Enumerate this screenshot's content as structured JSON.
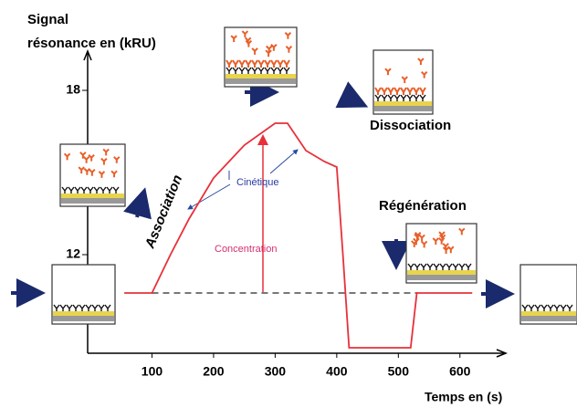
{
  "chart_data": {
    "type": "line",
    "y_label_lines": [
      "Signal",
      "résonance en (kRU)"
    ],
    "x_label": "Temps en (s)",
    "x": [
      55,
      100,
      130,
      160,
      200,
      250,
      300,
      320,
      350,
      380,
      400,
      410,
      420,
      450,
      500,
      520,
      530,
      560,
      620
    ],
    "values": [
      10.6,
      10.6,
      12.0,
      13.3,
      14.8,
      16.0,
      16.8,
      16.8,
      15.8,
      15.4,
      15.2,
      12.0,
      8.6,
      8.6,
      8.6,
      8.6,
      10.6,
      10.6,
      10.6
    ],
    "color": "#e8303a",
    "reference_line": 10.6,
    "reference_range": [
      100,
      530
    ],
    "xlim": [
      0,
      670
    ],
    "ylim": [
      8.4,
      19.3
    ],
    "xticks": [
      100,
      200,
      300,
      400,
      500,
      600
    ],
    "yticks": [
      12,
      18
    ],
    "annotations": [
      "Association",
      "Cinétique",
      "Concentration",
      "Dissociation",
      "Régénération"
    ]
  }
}
